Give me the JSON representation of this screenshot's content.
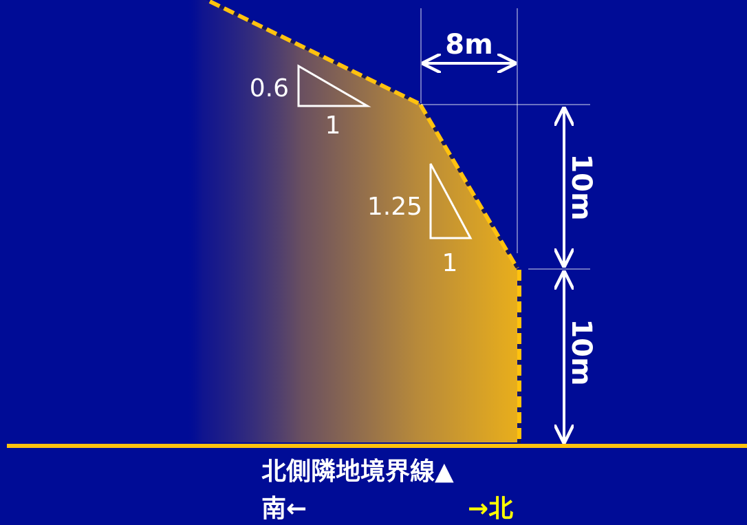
{
  "diagram": {
    "colors": {
      "background": "#000c96",
      "ground_line": "#ffc20e",
      "envelope_fill_start": "#1a1a8a",
      "envelope_fill_end": "#e8ae1c",
      "dashed_outline": "#ffc20e",
      "dimension_lines": "#ffffff",
      "north_label": "#ffff00"
    },
    "dimensions": {
      "horizontal_offset": "8m",
      "upper_height": "10m",
      "lower_height": "10m"
    },
    "slopes": {
      "upper": {
        "rise": "0.6",
        "run": "1"
      },
      "lower": {
        "rise": "1.25",
        "run": "1"
      }
    },
    "caption": {
      "boundary_label": "北側隣地境界線▲",
      "south_label": "南←",
      "north_label": "→北"
    }
  }
}
